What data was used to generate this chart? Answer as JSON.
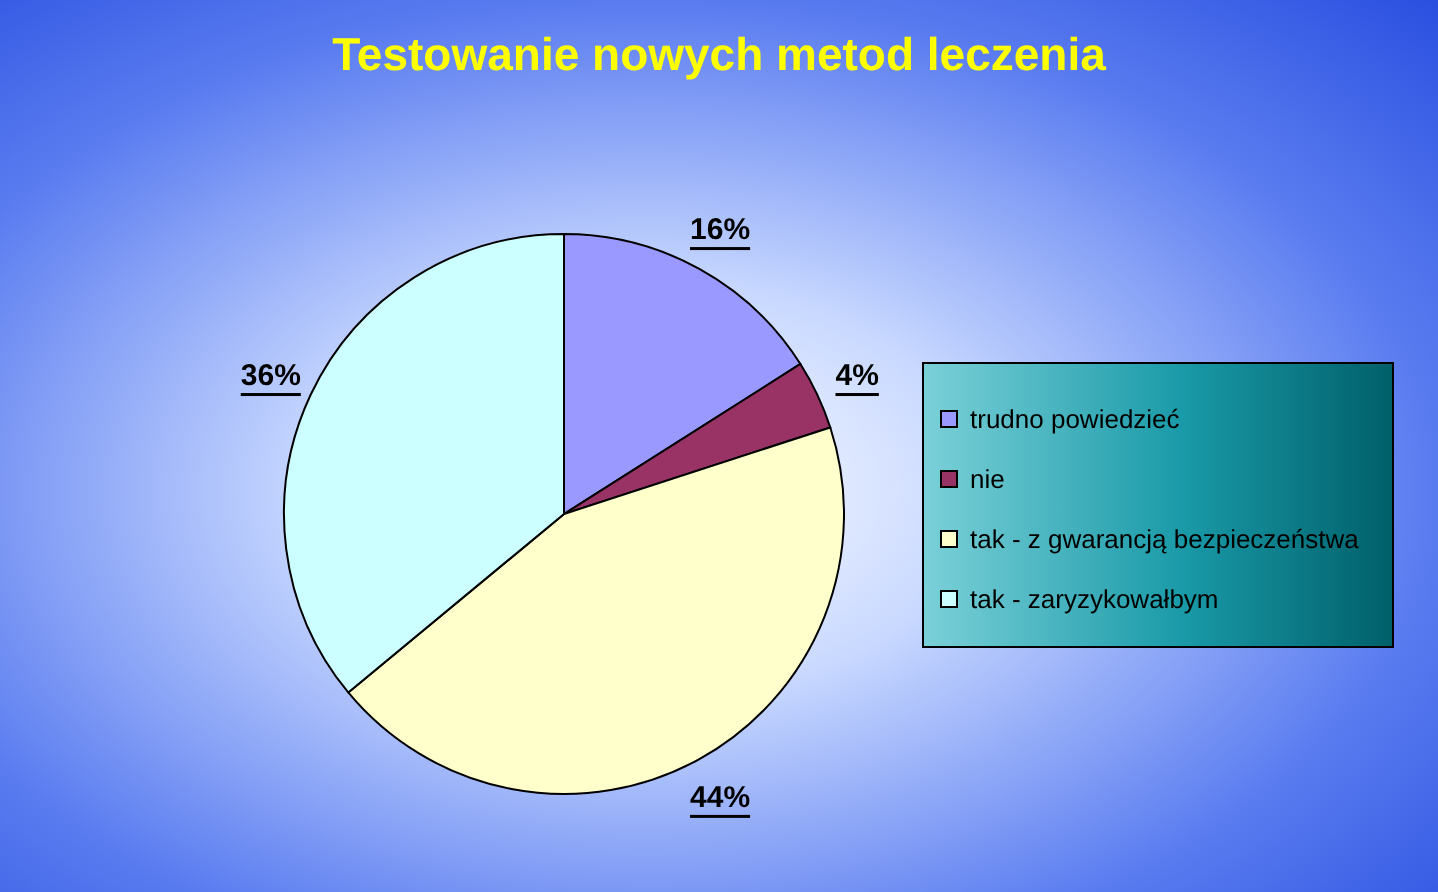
{
  "chart_data": {
    "type": "pie",
    "title": "Testowanie nowych metod leczenia",
    "categories": [
      "trudno powiedzieć",
      "nie",
      "tak - z gwarancją bezpieczeństwa",
      "tak - zaryzykowałbym"
    ],
    "values": [
      16,
      4,
      44,
      36
    ],
    "value_labels": [
      "16%",
      "4%",
      "44%",
      "36%"
    ],
    "colors": [
      "#9999ff",
      "#993366",
      "#ffffcc",
      "#ccffff"
    ],
    "legend": "right"
  }
}
